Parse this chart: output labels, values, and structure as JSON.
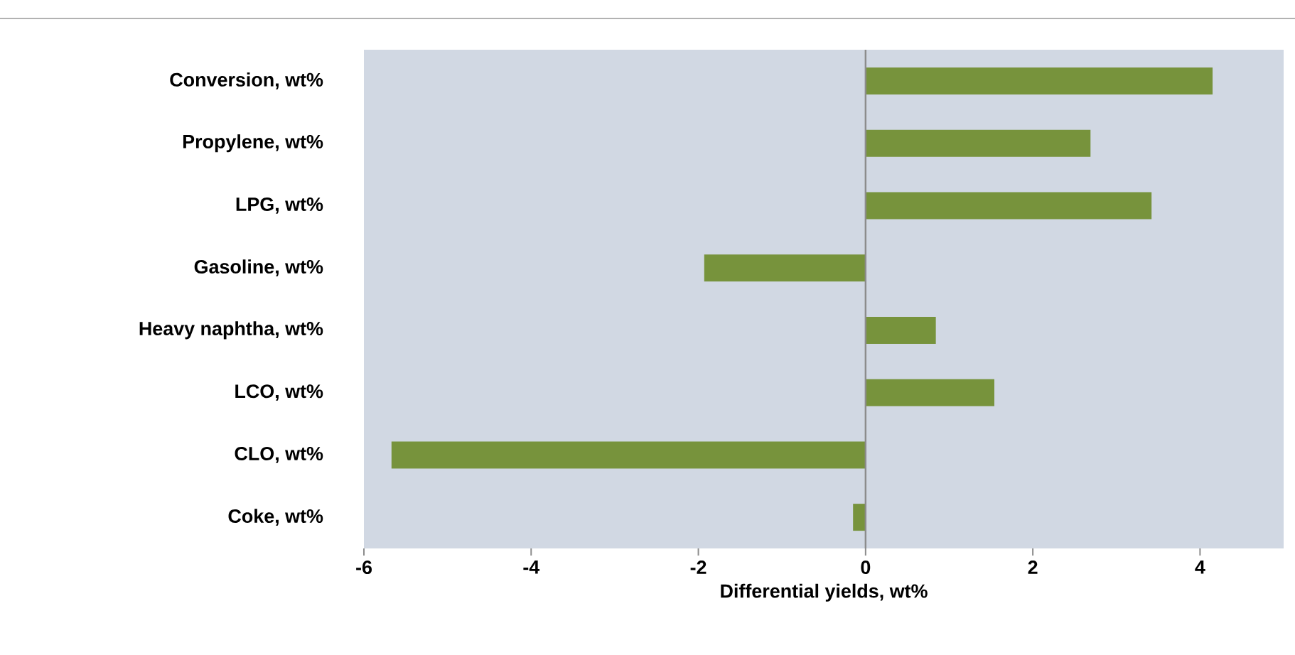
{
  "chart_data": {
    "type": "bar",
    "orientation": "horizontal",
    "xlabel": "Differential yields, wt%",
    "categories": [
      "Conversion, wt%",
      "Propylene, wt%",
      "LPG, wt%",
      "Gasoline, wt%",
      "Heavy naphtha, wt%",
      "LCO, wt%",
      "CLO, wt%",
      "Coke, wt%"
    ],
    "values": [
      4.15,
      2.69,
      3.42,
      -1.93,
      0.84,
      1.54,
      -5.67,
      -0.15
    ],
    "color": "#77933c",
    "xlim": [
      -6,
      5
    ],
    "xticks": [
      -6,
      -4,
      -2,
      0,
      2,
      4
    ]
  }
}
